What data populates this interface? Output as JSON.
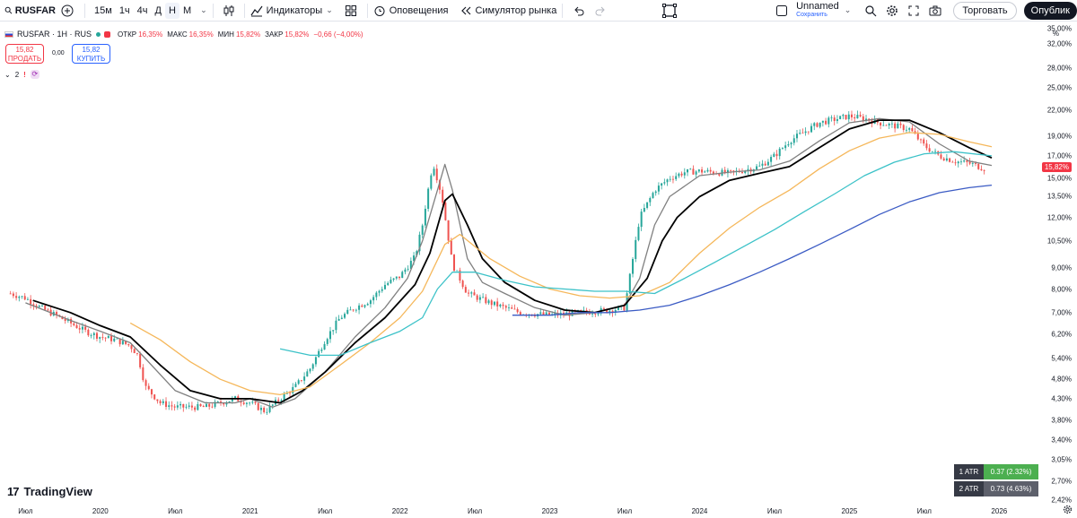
{
  "toolbar": {
    "symbol": "RUSFAR",
    "intervals": [
      "15м",
      "1ч",
      "4ч",
      "Д",
      "Н",
      "М"
    ],
    "active_interval": "Н",
    "indicators_label": "Индикаторы",
    "alerts_label": "Оповещения",
    "replay_label": "Симулятор рынка",
    "layout_name": "Unnamed",
    "layout_status": "Сохранить",
    "trade_label": "Торговать",
    "publish_label": "Опублик"
  },
  "legend": {
    "title": "RUSFAR · 1Н · RUS",
    "open_label": "ОТКР",
    "open_value": "16,35%",
    "high_label": "МАКС",
    "high_value": "16,35%",
    "low_label": "МИН",
    "low_value": "15,82%",
    "close_label": "ЗАКР",
    "close_value": "15,82%",
    "change": "−0,66 (−4,00%)",
    "sell_price": "15,82",
    "sell_label": "ПРОДАТЬ",
    "spread": "0,00",
    "buy_price": "15,82",
    "buy_label": "КУПИТЬ",
    "indicator_count": "2"
  },
  "axis": {
    "unit": "%",
    "y_ticks": [
      "35,00%",
      "32,00%",
      "28,00%",
      "25,00%",
      "22,00%",
      "19,00%",
      "17,00%",
      "15,00%",
      "13,50%",
      "12,00%",
      "10,50%",
      "9,00%",
      "8,00%",
      "7,00%",
      "6,20%",
      "5,40%",
      "4,80%",
      "4,30%",
      "3,80%",
      "3,40%",
      "3,05%",
      "2,70%",
      "2,42%"
    ],
    "x_ticks": [
      "Июл",
      "2020",
      "Июл",
      "2021",
      "Июл",
      "2022",
      "Июл",
      "2023",
      "Июл",
      "2024",
      "Июл",
      "2025",
      "Июл",
      "2026"
    ],
    "last_price": "15,82%"
  },
  "atr": {
    "atr1_label": "1 ATR",
    "atr1_value": "0.37 (2.32%)",
    "atr2_label": "2 ATR",
    "atr2_value": "0.73 (4.63%)"
  },
  "watermark": "TradingView",
  "colors": {
    "up": "#26a69a",
    "down": "#ef5350",
    "ma_fast": "#808080",
    "ma_black": "#000000",
    "ma_orange": "#f5b75a",
    "ma_cyan": "#3cc2c8",
    "ma_blue": "#3b5bc4",
    "sell": "#f23645",
    "buy": "#2962ff"
  },
  "chart_data": {
    "type": "line",
    "title": "RUSFAR · 1Н · RUS",
    "y_scale": "log",
    "ylim": [
      2.35,
      36
    ],
    "xlim": [
      2019.33,
      2026.17
    ],
    "price_series": {
      "x": [
        2019.4,
        2019.5,
        2019.6,
        2019.7,
        2019.8,
        2019.9,
        2020.0,
        2020.1,
        2020.2,
        2020.25,
        2020.3,
        2020.4,
        2020.5,
        2020.6,
        2020.7,
        2020.8,
        2020.9,
        2021.0,
        2021.1,
        2021.2,
        2021.3,
        2021.4,
        2021.5,
        2021.6,
        2021.7,
        2021.8,
        2021.9,
        2022.0,
        2022.1,
        2022.15,
        2022.18,
        2022.22,
        2022.28,
        2022.35,
        2022.45,
        2022.6,
        2022.8,
        2023.0,
        2023.2,
        2023.4,
        2023.5,
        2023.6,
        2023.7,
        2023.8,
        2023.9,
        2024.0,
        2024.2,
        2024.4,
        2024.5,
        2024.6,
        2024.8,
        2025.0,
        2025.1,
        2025.2,
        2025.4,
        2025.5,
        2025.6,
        2025.7,
        2025.8,
        2025.9
      ],
      "y": [
        7.8,
        7.6,
        7.2,
        6.9,
        6.6,
        6.3,
        6.1,
        6.0,
        5.8,
        5.5,
        4.6,
        4.2,
        4.1,
        4.1,
        4.1,
        4.2,
        4.3,
        4.2,
        4.0,
        4.3,
        4.6,
        5.1,
        6.0,
        6.8,
        7.2,
        7.5,
        8.2,
        8.6,
        9.6,
        11.5,
        13.5,
        16.4,
        13.5,
        9.2,
        7.8,
        7.4,
        7.0,
        6.9,
        7.0,
        7.1,
        7.2,
        12.0,
        14.0,
        15.0,
        15.5,
        15.6,
        15.4,
        16.0,
        17.0,
        18.5,
        20.5,
        21.3,
        21.0,
        20.5,
        19.8,
        18.0,
        17.0,
        16.5,
        16.3,
        15.82
      ]
    },
    "series": [
      {
        "name": "",
        "color": "#808080",
        "x": [
          2019.5,
          2019.8,
          2020.0,
          2020.2,
          2020.3,
          2020.5,
          2020.7,
          2020.9,
          2021.0,
          2021.15,
          2021.3,
          2021.5,
          2021.7,
          2021.9,
          2022.05,
          2022.15,
          2022.25,
          2022.3,
          2022.35,
          2022.45,
          2022.55,
          2022.7,
          2022.9,
          2023.1,
          2023.3,
          2023.5,
          2023.6,
          2023.7,
          2023.8,
          2024.0,
          2024.2,
          2024.4,
          2024.6,
          2024.8,
          2025.0,
          2025.2,
          2025.4,
          2025.6,
          2025.8,
          2025.95
        ],
        "y": [
          7.4,
          6.7,
          6.3,
          5.9,
          5.4,
          4.5,
          4.2,
          4.2,
          4.3,
          4.1,
          4.3,
          5.0,
          6.1,
          7.2,
          8.5,
          10.5,
          14.0,
          16.2,
          14.0,
          9.5,
          8.3,
          7.8,
          7.2,
          6.9,
          7.0,
          7.3,
          8.5,
          11.5,
          13.5,
          15.2,
          15.5,
          15.7,
          16.5,
          18.5,
          20.5,
          21.0,
          20.6,
          18.2,
          16.5,
          16.1
        ]
      },
      {
        "name": "",
        "color": "#000000",
        "x": [
          2019.55,
          2019.8,
          2020.0,
          2020.2,
          2020.4,
          2020.6,
          2020.8,
          2021.0,
          2021.2,
          2021.35,
          2021.5,
          2021.7,
          2021.9,
          2022.1,
          2022.2,
          2022.3,
          2022.35,
          2022.45,
          2022.55,
          2022.7,
          2022.9,
          2023.1,
          2023.3,
          2023.5,
          2023.65,
          2023.75,
          2023.85,
          2024.0,
          2024.2,
          2024.4,
          2024.6,
          2024.8,
          2025.0,
          2025.2,
          2025.4,
          2025.6,
          2025.8,
          2025.95
        ],
        "y": [
          7.5,
          7.0,
          6.5,
          6.1,
          5.2,
          4.5,
          4.3,
          4.3,
          4.2,
          4.5,
          5.0,
          5.9,
          6.8,
          8.2,
          9.8,
          13.2,
          13.7,
          11.5,
          9.5,
          8.3,
          7.5,
          7.1,
          7.0,
          7.3,
          8.5,
          10.5,
          12.0,
          13.5,
          14.8,
          15.4,
          16.0,
          17.8,
          19.8,
          20.8,
          20.8,
          19.4,
          17.8,
          16.8
        ]
      },
      {
        "name": "",
        "color": "#f5b75a",
        "x": [
          2020.2,
          2020.4,
          2020.6,
          2020.8,
          2021.0,
          2021.2,
          2021.4,
          2021.6,
          2021.8,
          2022.0,
          2022.15,
          2022.3,
          2022.4,
          2022.6,
          2022.8,
          2023.0,
          2023.2,
          2023.4,
          2023.6,
          2023.8,
          2024.0,
          2024.2,
          2024.4,
          2024.6,
          2024.8,
          2025.0,
          2025.2,
          2025.4,
          2025.6,
          2025.8,
          2025.95
        ],
        "y": [
          6.6,
          6.0,
          5.3,
          4.8,
          4.5,
          4.4,
          4.6,
          5.2,
          5.9,
          6.8,
          7.9,
          10.3,
          10.9,
          9.5,
          8.6,
          8.0,
          7.7,
          7.6,
          7.7,
          8.3,
          9.8,
          11.3,
          12.7,
          14.0,
          15.8,
          17.5,
          18.8,
          19.4,
          19.2,
          18.4,
          17.9
        ]
      },
      {
        "name": "",
        "color": "#3cc2c8",
        "x": [
          2021.2,
          2021.4,
          2021.6,
          2021.8,
          2022.0,
          2022.15,
          2022.25,
          2022.35,
          2022.5,
          2022.7,
          2022.9,
          2023.1,
          2023.3,
          2023.5,
          2023.7,
          2023.9,
          2024.1,
          2024.3,
          2024.5,
          2024.7,
          2024.9,
          2025.1,
          2025.3,
          2025.5,
          2025.7,
          2025.95
        ],
        "y": [
          5.7,
          5.5,
          5.5,
          5.9,
          6.3,
          6.8,
          8.0,
          8.8,
          8.8,
          8.4,
          8.1,
          8.0,
          7.9,
          7.9,
          7.8,
          8.5,
          9.3,
          10.2,
          11.2,
          12.4,
          13.7,
          15.2,
          16.4,
          17.2,
          17.4,
          17.0
        ]
      },
      {
        "name": "",
        "color": "#3b5bc4",
        "x": [
          2022.75,
          2023.0,
          2023.2,
          2023.4,
          2023.6,
          2023.8,
          2024.0,
          2024.2,
          2024.4,
          2024.6,
          2024.8,
          2025.0,
          2025.2,
          2025.4,
          2025.6,
          2025.8,
          2025.95
        ],
        "y": [
          6.9,
          6.9,
          7.0,
          7.0,
          7.1,
          7.3,
          7.7,
          8.2,
          8.8,
          9.5,
          10.3,
          11.2,
          12.2,
          13.1,
          13.8,
          14.2,
          14.4
        ]
      }
    ]
  }
}
